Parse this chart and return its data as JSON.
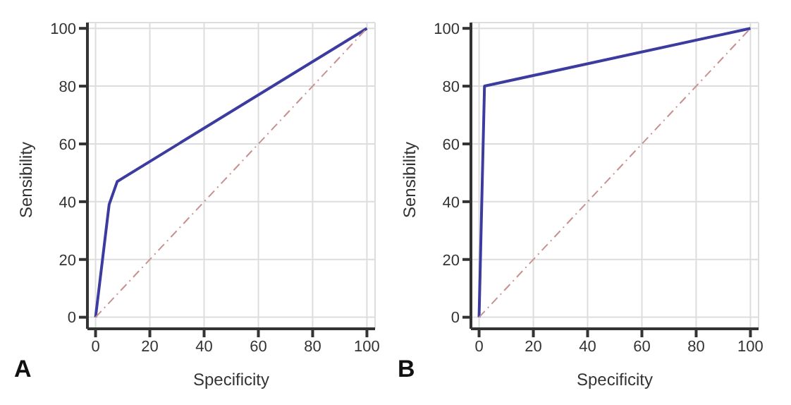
{
  "chart_data": [
    {
      "type": "line",
      "xlabel": "Specificity",
      "ylabel": "Sensibility",
      "xlim": [
        -3,
        103
      ],
      "ylim": [
        -4,
        102
      ],
      "xticks": [
        0,
        20,
        40,
        60,
        80,
        100
      ],
      "yticks": [
        0,
        20,
        40,
        60,
        80,
        100
      ],
      "grid": true,
      "legend": false,
      "marker": "none",
      "annotations": [
        "A"
      ],
      "series": [
        {
          "x": [
            0,
            5,
            8,
            100
          ],
          "values": [
            0,
            39,
            47,
            100
          ],
          "color": "#3c3ca0",
          "line_style": "solid"
        },
        {
          "x": [
            0,
            100
          ],
          "values": [
            0,
            100
          ],
          "color": "#c89090",
          "line_style": "dashed"
        }
      ]
    },
    {
      "type": "line",
      "xlabel": "Specificity",
      "ylabel": "Sensibility",
      "xlim": [
        -3,
        103
      ],
      "ylim": [
        -4,
        102
      ],
      "xticks": [
        0,
        20,
        40,
        60,
        80,
        100
      ],
      "yticks": [
        0,
        20,
        40,
        60,
        80,
        100
      ],
      "grid": true,
      "legend": false,
      "marker": "none",
      "annotations": [
        "B"
      ],
      "series": [
        {
          "x": [
            0,
            2,
            100
          ],
          "values": [
            0,
            80,
            100
          ],
          "color": "#3c3ca0",
          "line_style": "solid"
        },
        {
          "x": [
            0,
            100
          ],
          "values": [
            0,
            100
          ],
          "color": "#c89090",
          "line_style": "dashed"
        }
      ]
    }
  ]
}
